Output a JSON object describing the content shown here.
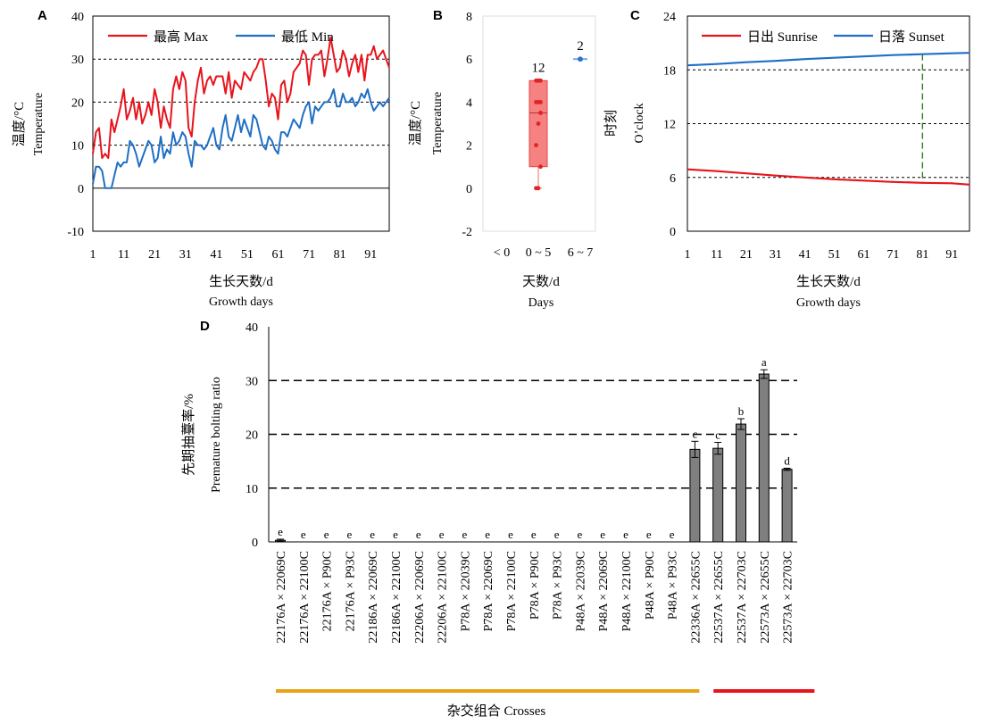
{
  "chart_data": [
    {
      "panel": "A",
      "type": "line",
      "xlabel_cn": "生长天数/d",
      "xlabel_en": "Growth days",
      "ylabel_cn": "温度/°C",
      "ylabel_en": "Temperature",
      "xlim": [
        1,
        97
      ],
      "ylim": [
        -10,
        40
      ],
      "xticks": [
        1,
        11,
        21,
        31,
        41,
        51,
        61,
        71,
        81,
        91
      ],
      "yticks": [
        -10,
        0,
        10,
        20,
        30,
        40
      ],
      "ref_lines": [
        10,
        20,
        30
      ],
      "legend_position": "top",
      "series": [
        {
          "name": "最高 Max",
          "color": "#e8141c",
          "x": [
            1,
            2,
            3,
            4,
            5,
            6,
            7,
            8,
            9,
            10,
            11,
            12,
            13,
            14,
            15,
            16,
            17,
            18,
            19,
            20,
            21,
            22,
            23,
            24,
            25,
            26,
            27,
            28,
            29,
            30,
            31,
            32,
            33,
            34,
            35,
            36,
            37,
            38,
            39,
            40,
            41,
            42,
            43,
            44,
            45,
            46,
            47,
            48,
            49,
            50,
            51,
            52,
            53,
            54,
            55,
            56,
            57,
            58,
            59,
            60,
            61,
            62,
            63,
            64,
            65,
            66,
            67,
            68,
            69,
            70,
            71,
            72,
            73,
            74,
            75,
            76,
            77,
            78,
            79,
            80,
            81,
            82,
            83,
            84,
            85,
            86,
            87,
            88,
            89,
            90,
            91,
            92,
            93,
            94,
            95,
            96,
            97
          ],
          "values": [
            8,
            13,
            14,
            7,
            8,
            7,
            16,
            13,
            16,
            19,
            23,
            16,
            18,
            21,
            16,
            20,
            15,
            17,
            20,
            17,
            23,
            20,
            14,
            19,
            16,
            14,
            23,
            26,
            23,
            27,
            25,
            14,
            12,
            20,
            25,
            28,
            22,
            25,
            26,
            24,
            26,
            26,
            26,
            22,
            27,
            21,
            25,
            24,
            23,
            27,
            26,
            25,
            27,
            28,
            30,
            30,
            25,
            19,
            22,
            21,
            16,
            24,
            25,
            20,
            22,
            27,
            28,
            29,
            32,
            31,
            24,
            30,
            31,
            31,
            32,
            26,
            30,
            35,
            31,
            27,
            28,
            32,
            30,
            26,
            29,
            31,
            27,
            31,
            25,
            31,
            31,
            33,
            30,
            31,
            32,
            30,
            28
          ]
        },
        {
          "name": "最低 Min",
          "color": "#1f6fc6",
          "x": [
            1,
            2,
            3,
            4,
            5,
            6,
            7,
            8,
            9,
            10,
            11,
            12,
            13,
            14,
            15,
            16,
            17,
            18,
            19,
            20,
            21,
            22,
            23,
            24,
            25,
            26,
            27,
            28,
            29,
            30,
            31,
            32,
            33,
            34,
            35,
            36,
            37,
            38,
            39,
            40,
            41,
            42,
            43,
            44,
            45,
            46,
            47,
            48,
            49,
            50,
            51,
            52,
            53,
            54,
            55,
            56,
            57,
            58,
            59,
            60,
            61,
            62,
            63,
            64,
            65,
            66,
            67,
            68,
            69,
            70,
            71,
            72,
            73,
            74,
            75,
            76,
            77,
            78,
            79,
            80,
            81,
            82,
            83,
            84,
            85,
            86,
            87,
            88,
            89,
            90,
            91,
            92,
            93,
            94,
            95,
            96,
            97
          ],
          "values": [
            1,
            5,
            5,
            4,
            0,
            0,
            0,
            3,
            6,
            5,
            6,
            6,
            11,
            10,
            8,
            5,
            7,
            9,
            11,
            10,
            6,
            7,
            12,
            7,
            9,
            8,
            13,
            10,
            11,
            13,
            12,
            8,
            5,
            11,
            10,
            10,
            9,
            10,
            12,
            14,
            10,
            9,
            14,
            17,
            12,
            11,
            14,
            17,
            13,
            16,
            14,
            12,
            17,
            16,
            13,
            10,
            9,
            12,
            11,
            9,
            8,
            13,
            13,
            12,
            14,
            16,
            15,
            14,
            17,
            19,
            20,
            15,
            19,
            18,
            19,
            20,
            20,
            21,
            23,
            19,
            19,
            22,
            20,
            20,
            21,
            19,
            20,
            22,
            21,
            23,
            20,
            18,
            19,
            20,
            19,
            20,
            21
          ]
        }
      ]
    },
    {
      "panel": "B",
      "type": "box",
      "xlabel_cn": "天数/d",
      "xlabel_en": "Days",
      "ylabel_cn": "温度/°C",
      "ylabel_en": "Temperature",
      "ylim": [
        -2,
        8
      ],
      "yticks": [
        -2,
        0,
        2,
        4,
        6,
        8
      ],
      "categories": [
        "< 0",
        "0 ~ 5",
        "6 ~ 7"
      ],
      "counts": [
        "",
        "12",
        "2"
      ],
      "boxes": [
        null,
        {
          "min": 0,
          "q1": 1,
          "median": 3.5,
          "q3": 5,
          "max": 5,
          "points": [
            0,
            0,
            1,
            2,
            3,
            3.5,
            4,
            4,
            4,
            5,
            5,
            5
          ],
          "color": "#f46b6b"
        },
        {
          "min": 6,
          "q1": 6,
          "median": 6,
          "q3": 6,
          "max": 6,
          "points": [
            6,
            6
          ],
          "color": "#2f6fd0"
        }
      ]
    },
    {
      "panel": "C",
      "type": "line",
      "xlabel_cn": "生长天数/d",
      "xlabel_en": "Growth days",
      "ylabel_cn": "时刻",
      "ylabel_en": "O’clock",
      "xlim": [
        1,
        97
      ],
      "ylim": [
        0,
        24
      ],
      "xticks": [
        1,
        11,
        21,
        31,
        41,
        51,
        61,
        71,
        81,
        91
      ],
      "yticks": [
        0,
        6,
        12,
        18,
        24
      ],
      "ref_lines": [
        6,
        12,
        18
      ],
      "marker_day": 81,
      "legend_position": "top",
      "series": [
        {
          "name": "日出 Sunrise",
          "color": "#e8141c",
          "x": [
            1,
            11,
            21,
            31,
            41,
            51,
            61,
            71,
            81,
            91,
            97
          ],
          "values": [
            6.9,
            6.7,
            6.45,
            6.2,
            6.0,
            5.8,
            5.65,
            5.5,
            5.4,
            5.35,
            5.2
          ]
        },
        {
          "name": "日落 Sunset",
          "color": "#1f6fc6",
          "x": [
            1,
            11,
            21,
            31,
            41,
            51,
            61,
            71,
            81,
            91,
            97
          ],
          "values": [
            18.5,
            18.65,
            18.85,
            19.0,
            19.2,
            19.35,
            19.5,
            19.65,
            19.75,
            19.85,
            19.9
          ]
        }
      ]
    },
    {
      "panel": "D",
      "type": "bar",
      "xlabel": "杂交组合 Crosses",
      "ylabel_cn": "先期抽薹率/%",
      "ylabel_en": "Premature bolting ratio",
      "ylim": [
        0,
        40
      ],
      "yticks": [
        0,
        10,
        20,
        30,
        40
      ],
      "ref_lines": [
        10,
        20,
        30
      ],
      "group_colors": [
        "#e8a317",
        "#e8141c"
      ],
      "groups": [
        [
          0,
          18
        ],
        [
          19,
          23
        ]
      ],
      "categories": [
        "22176A × 22069C",
        "22176A × 22100C",
        "22176A × P90C",
        "22176A × P93C",
        "22186A × 22069C",
        "22186A × 22100C",
        "22206A × 22069C",
        "22206A × 22100C",
        "P78A × 22039C",
        "P78A × 22069C",
        "P78A × 22100C",
        "P78A × P90C",
        "P78A × P93C",
        "P48A × 22039C",
        "P48A × 22069C",
        "P48A × 22100C",
        "P48A × P90C",
        "P48A × P93C",
        "22336A × 22655C",
        "22537A × 22655C",
        "22537A × 22703C",
        "22573A × 22655C",
        "22573A × 22703C"
      ],
      "values": [
        0.3,
        0,
        0,
        0,
        0,
        0,
        0,
        0,
        0,
        0,
        0,
        0,
        0,
        0,
        0,
        0,
        0,
        0,
        17.2,
        17.4,
        21.9,
        31.2,
        13.5
      ],
      "errors": [
        0.2,
        0,
        0,
        0,
        0,
        0,
        0,
        0,
        0,
        0,
        0,
        0,
        0,
        0,
        0,
        0,
        0,
        0,
        1.5,
        1.1,
        1.0,
        0.8,
        0.2
      ],
      "significance": [
        "e",
        "e",
        "e",
        "e",
        "e",
        "e",
        "e",
        "e",
        "e",
        "e",
        "e",
        "e",
        "e",
        "e",
        "e",
        "e",
        "e",
        "e",
        "c",
        "c",
        "b",
        "a",
        "d"
      ]
    }
  ]
}
